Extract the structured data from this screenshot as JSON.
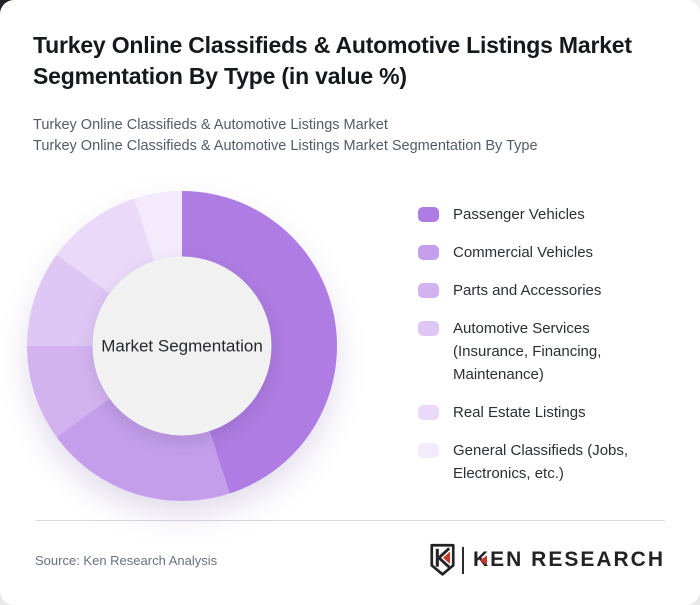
{
  "header": {
    "title": "Turkey Online Classifieds & Automotive Listings Market Segmentation By Type (in value %)",
    "subtitle_lines": [
      "Turkey Online Classifieds & Automotive Listings Market",
      "Turkey Online Classifieds & Automotive Listings Market Segmentation By Type"
    ]
  },
  "chart_data": {
    "type": "pie",
    "variant": "donut",
    "title": "Turkey Online Classifieds & Automotive Listings Market Segmentation By Type (in value %)",
    "unit": "value %",
    "center_label": "Market Segmentation",
    "start_angle_deg": 0,
    "direction": "clockwise",
    "legend_position": "right",
    "hole_color": "#f1f1f2",
    "segments": [
      {
        "label": "Passenger Vehicles",
        "value": 45,
        "color": "#ae7ce2"
      },
      {
        "label": "Commercial Vehicles",
        "value": 20,
        "color": "#c49eeb"
      },
      {
        "label": "Parts and Accessories",
        "value": 10,
        "color": "#d2b3f0"
      },
      {
        "label": "Automotive Services (Insurance, Financing, Maintenance)",
        "value": 10,
        "color": "#dec7f5"
      },
      {
        "label": "Real Estate Listings",
        "value": 10,
        "color": "#ead9f9"
      },
      {
        "label": "General Classifieds (Jobs, Electronics, etc.)",
        "value": 5,
        "color": "#f3ebfc"
      }
    ]
  },
  "footer": {
    "source": "Source: Ken Research Analysis",
    "logo": {
      "wordmark_first_letter": "K",
      "wordmark_rest": "EN RESEARCH",
      "accent_color": "#c23b2d",
      "ink_color": "#232327"
    }
  }
}
